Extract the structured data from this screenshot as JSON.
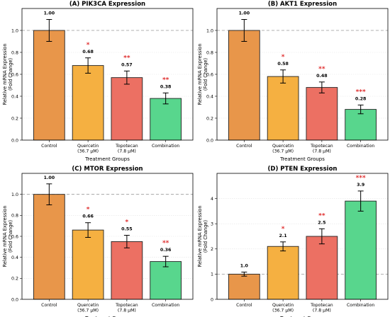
{
  "chart_data": [
    {
      "type": "bar",
      "title": "(A) PIK3CA Expression",
      "xlabel": "Treatment Groups",
      "ylabel": [
        "Relative mRNA Expression",
        "(Fold Change)"
      ],
      "ylim": [
        0,
        1.2
      ],
      "yticks": [
        "0.0",
        "0.2",
        "0.4",
        "0.6",
        "0.8",
        "1.0"
      ],
      "categories": [
        [
          "Control"
        ],
        [
          "Quercetin",
          "(36.7 μM)"
        ],
        [
          "Topotecan",
          "(7.8 μM)"
        ],
        [
          "Combination"
        ]
      ],
      "values": [
        1.0,
        0.68,
        0.57,
        0.38
      ],
      "errors": [
        0.1,
        0.07,
        0.06,
        0.05
      ],
      "value_labels": [
        "1.00",
        "0.68",
        "0.57",
        "0.38"
      ],
      "significance": [
        "",
        "*",
        "**",
        "**"
      ],
      "colors": [
        "#E8964A",
        "#F5B041",
        "#EC7063",
        "#58D68D"
      ],
      "reference_line": 1.0,
      "grid": "y"
    },
    {
      "type": "bar",
      "title": "(B) AKT1 Expression",
      "xlabel": "Treatment Groups",
      "ylabel": [
        "Relative mRNA Expression",
        "(Fold Change)"
      ],
      "ylim": [
        0,
        1.2
      ],
      "yticks": [
        "0.0",
        "0.2",
        "0.4",
        "0.6",
        "0.8",
        "1.0"
      ],
      "categories": [
        [
          "Control"
        ],
        [
          "Quercetin",
          "(36.7 μM)"
        ],
        [
          "Topotecan",
          "(7.8 μM)"
        ],
        [
          "Combination"
        ]
      ],
      "values": [
        1.0,
        0.58,
        0.48,
        0.28
      ],
      "errors": [
        0.1,
        0.06,
        0.05,
        0.04
      ],
      "value_labels": [
        "1.00",
        "0.58",
        "0.48",
        "0.28"
      ],
      "significance": [
        "",
        "*",
        "**",
        "***"
      ],
      "colors": [
        "#E8964A",
        "#F5B041",
        "#EC7063",
        "#58D68D"
      ],
      "reference_line": 1.0,
      "grid": "y"
    },
    {
      "type": "bar",
      "title": "(C) MTOR Expression",
      "xlabel": "Treatment Groups",
      "ylabel": [
        "Relative mRNA Expression",
        "(Fold Change)"
      ],
      "ylim": [
        0,
        1.2
      ],
      "yticks": [
        "0.0",
        "0.2",
        "0.4",
        "0.6",
        "0.8",
        "1.0"
      ],
      "categories": [
        [
          "Control"
        ],
        [
          "Quercetin",
          "(36.7 μM)"
        ],
        [
          "Topotecan",
          "(7.8 μM)"
        ],
        [
          "Combination"
        ]
      ],
      "values": [
        1.0,
        0.66,
        0.55,
        0.36
      ],
      "errors": [
        0.1,
        0.07,
        0.06,
        0.05
      ],
      "value_labels": [
        "1.00",
        "0.66",
        "0.55",
        "0.36"
      ],
      "significance": [
        "",
        "*",
        "*",
        "**"
      ],
      "colors": [
        "#E8964A",
        "#F5B041",
        "#EC7063",
        "#58D68D"
      ],
      "reference_line": 1.0,
      "grid": "y"
    },
    {
      "type": "bar",
      "title": "(D) PTEN Expression",
      "xlabel": "Treatment Groups",
      "ylabel": [
        "Relative mRNA Expression",
        "(Fold Change)"
      ],
      "ylim": [
        0,
        5
      ],
      "yticks": [
        "0",
        "1",
        "2",
        "3",
        "4"
      ],
      "categories": [
        [
          "Control"
        ],
        [
          "Quercetin",
          "(36.7 μM)"
        ],
        [
          "Topotecan",
          "(7.8 μM)"
        ],
        [
          "Combination"
        ]
      ],
      "values": [
        1.0,
        2.1,
        2.5,
        3.9
      ],
      "errors": [
        0.08,
        0.18,
        0.3,
        0.4
      ],
      "value_labels": [
        "1.0",
        "2.1",
        "2.5",
        "3.9"
      ],
      "significance": [
        "",
        "*",
        "**",
        "***"
      ],
      "colors": [
        "#E8964A",
        "#F5B041",
        "#EC7063",
        "#58D68D"
      ],
      "reference_line": 1.0,
      "grid": "y"
    }
  ]
}
